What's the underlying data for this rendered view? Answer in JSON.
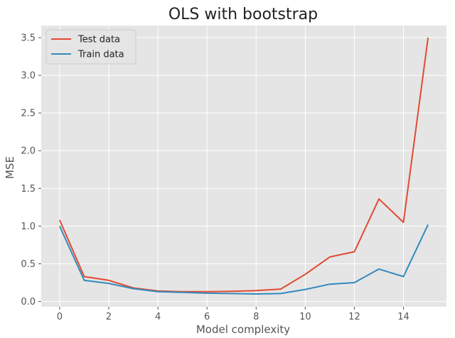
{
  "chart_data": {
    "type": "line",
    "title": "OLS with bootstrap",
    "xlabel": "Model complexity",
    "ylabel": "MSE",
    "x": [
      0,
      1,
      2,
      3,
      4,
      5,
      6,
      7,
      8,
      9,
      10,
      11,
      12,
      13,
      14,
      15
    ],
    "xlim": [
      -0.75,
      15.75
    ],
    "ylim": [
      -0.07,
      3.66
    ],
    "xticks": [
      0,
      2,
      4,
      6,
      8,
      10,
      12,
      14
    ],
    "xtick_labels": [
      "0",
      "2",
      "4",
      "6",
      "8",
      "10",
      "12",
      "14"
    ],
    "yticks": [
      0.0,
      0.5,
      1.0,
      1.5,
      2.0,
      2.5,
      3.0,
      3.5
    ],
    "ytick_labels": [
      "0.0",
      "0.5",
      "1.0",
      "1.5",
      "2.0",
      "2.5",
      "3.0",
      "3.5"
    ],
    "grid": true,
    "legend_position": "top-left",
    "series": [
      {
        "name": "Test data",
        "color": "#E24A33",
        "values": [
          1.08,
          0.33,
          0.28,
          0.18,
          0.14,
          0.13,
          0.13,
          0.135,
          0.145,
          0.165,
          0.36,
          0.59,
          0.66,
          1.36,
          1.05,
          3.5
        ]
      },
      {
        "name": "Train data",
        "color": "#348ABD",
        "values": [
          1.0,
          0.28,
          0.24,
          0.17,
          0.13,
          0.12,
          0.11,
          0.105,
          0.1,
          0.105,
          0.16,
          0.23,
          0.25,
          0.43,
          0.33,
          1.02
        ]
      }
    ],
    "colors": {
      "plot_background": "#E5E5E5",
      "grid": "#FFFFFF",
      "text": "#555555"
    }
  }
}
